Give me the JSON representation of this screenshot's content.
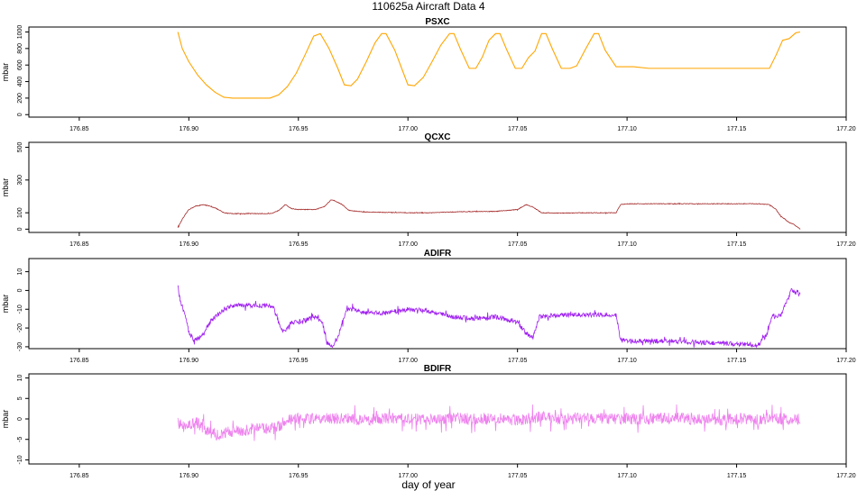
{
  "title": "110625a   Aircraft Data 4",
  "xlabel": "day of year",
  "chart_data": [
    {
      "type": "line",
      "title": "PSXC",
      "ylabel": "mbar",
      "color": "#FFA500",
      "xlim": [
        176.827,
        177.2
      ],
      "ylim": [
        -30,
        1060
      ],
      "xticks": [
        "176.85",
        "176.90",
        "176.95",
        "177.00",
        "177.05",
        "177.10",
        "177.15",
        "177.20"
      ],
      "yticks": [
        "0",
        "200",
        "400",
        "600",
        "800",
        "1000"
      ],
      "noise": 0,
      "x": [
        176.895,
        176.897,
        176.9,
        176.904,
        176.908,
        176.912,
        176.916,
        176.92,
        176.93,
        176.937,
        176.941,
        176.945,
        176.949,
        176.953,
        176.957,
        176.96,
        176.964,
        176.968,
        176.971,
        176.974,
        176.977,
        176.981,
        176.985,
        176.988,
        176.99,
        176.994,
        176.998,
        177.0,
        177.003,
        177.007,
        177.011,
        177.015,
        177.019,
        177.021,
        177.024,
        177.028,
        177.031,
        177.034,
        177.037,
        177.04,
        177.042,
        177.045,
        177.049,
        177.052,
        177.055,
        177.058,
        177.061,
        177.063,
        177.066,
        177.07,
        177.074,
        177.077,
        177.081,
        177.085,
        177.087,
        177.09,
        177.095,
        177.1,
        177.103,
        177.11,
        177.13,
        177.15,
        177.165,
        177.168,
        177.171,
        177.174,
        177.177,
        177.179
      ],
      "y": [
        1000,
        800,
        640,
        480,
        360,
        270,
        210,
        200,
        200,
        200,
        240,
        340,
        500,
        720,
        950,
        980,
        800,
        560,
        360,
        350,
        430,
        640,
        870,
        980,
        980,
        780,
        500,
        360,
        350,
        450,
        640,
        840,
        980,
        980,
        790,
        560,
        560,
        700,
        900,
        980,
        980,
        790,
        560,
        560,
        690,
        770,
        980,
        980,
        790,
        560,
        560,
        590,
        790,
        980,
        980,
        780,
        580,
        580,
        580,
        560,
        560,
        560,
        560,
        720,
        900,
        920,
        990,
        1000
      ]
    },
    {
      "type": "line",
      "title": "QCXC",
      "ylabel": "mbar",
      "color": "#A52A2A",
      "xlim": [
        176.827,
        177.2
      ],
      "ylim": [
        -20,
        530
      ],
      "xticks": [
        "176.85",
        "176.90",
        "176.95",
        "177.00",
        "177.05",
        "177.10",
        "177.15",
        "177.20"
      ],
      "yticks": [
        "0",
        "100",
        "300",
        "500"
      ],
      "noise": 2,
      "x": [
        176.895,
        176.897,
        176.9,
        176.903,
        176.907,
        176.912,
        176.916,
        176.92,
        176.93,
        176.938,
        176.941,
        176.944,
        176.947,
        176.95,
        176.958,
        176.962,
        176.965,
        176.967,
        176.97,
        176.973,
        176.976,
        176.98,
        177.0,
        177.01,
        177.02,
        177.03,
        177.04,
        177.05,
        177.054,
        177.057,
        177.061,
        177.07,
        177.08,
        177.09,
        177.095,
        177.097,
        177.1,
        177.12,
        177.14,
        177.16,
        177.165,
        177.168,
        177.17,
        177.172,
        177.174,
        177.176,
        177.178,
        177.179
      ],
      "y": [
        10,
        60,
        120,
        140,
        150,
        130,
        100,
        95,
        95,
        95,
        115,
        150,
        125,
        120,
        120,
        140,
        180,
        170,
        150,
        115,
        110,
        105,
        100,
        100,
        105,
        108,
        108,
        120,
        150,
        135,
        100,
        98,
        100,
        100,
        100,
        150,
        155,
        155,
        155,
        155,
        150,
        120,
        80,
        60,
        40,
        30,
        10,
        0
      ]
    },
    {
      "type": "line",
      "title": "ADIFR",
      "ylabel": "mbar",
      "color": "#A020F0",
      "xlim": [
        176.827,
        177.2
      ],
      "ylim": [
        -31,
        17
      ],
      "xticks": [
        "176.85",
        "176.90",
        "176.95",
        "176.95",
        "177.00",
        "177.05",
        "177.10",
        "177.15",
        "177.20"
      ],
      "yticks": [
        "-30",
        "-20",
        "-10",
        "0",
        "10"
      ],
      "noise": 1.2,
      "x": [
        176.895,
        176.896,
        176.898,
        176.9,
        176.902,
        176.905,
        176.908,
        176.912,
        176.916,
        176.92,
        176.93,
        176.938,
        176.94,
        176.942,
        176.944,
        176.947,
        176.95,
        176.955,
        176.958,
        176.961,
        176.963,
        176.966,
        176.968,
        176.97,
        176.972,
        176.975,
        176.98,
        176.99,
        177.0,
        177.01,
        177.02,
        177.03,
        177.04,
        177.05,
        177.054,
        177.057,
        177.06,
        177.07,
        177.08,
        177.09,
        177.095,
        177.097,
        177.1,
        177.12,
        177.14,
        177.16,
        177.162,
        177.164,
        177.166,
        177.17,
        177.173,
        177.175,
        177.177,
        177.179
      ],
      "y": [
        2,
        -5,
        -12,
        -22,
        -26,
        -25,
        -20,
        -14,
        -10,
        -8,
        -8,
        -8,
        -13,
        -21,
        -21,
        -17,
        -17,
        -15,
        -14,
        -17,
        -28,
        -30,
        -25,
        -18,
        -10,
        -10,
        -12,
        -12,
        -10,
        -11,
        -14,
        -15,
        -14,
        -17,
        -23,
        -25,
        -14,
        -13,
        -13,
        -13,
        -13,
        -26,
        -27,
        -27,
        -28,
        -29,
        -26,
        -23,
        -14,
        -13,
        -6,
        0,
        -1,
        -1
      ]
    },
    {
      "type": "line",
      "title": "BDIFR",
      "ylabel": "mbar",
      "color": "#EE82EE",
      "xlim": [
        176.827,
        177.2
      ],
      "ylim": [
        -11,
        11
      ],
      "xticks": [
        "176.85",
        "176.90",
        "176.95",
        "177.00",
        "177.05",
        "177.10",
        "177.15",
        "177.20"
      ],
      "yticks": [
        "-10",
        "-5",
        "0",
        "5",
        "10"
      ],
      "noise": 1.4,
      "x": [
        176.895,
        176.898,
        176.902,
        176.906,
        176.908,
        176.912,
        176.916,
        176.92,
        176.925,
        176.93,
        176.935,
        176.94,
        176.943,
        176.945,
        176.95,
        176.96,
        176.97,
        176.98,
        176.99,
        177.0,
        177.01,
        177.02,
        177.03,
        177.04,
        177.05,
        177.06,
        177.07,
        177.08,
        177.09,
        177.1,
        177.11,
        177.12,
        177.13,
        177.14,
        177.15,
        177.16,
        177.17,
        177.179
      ],
      "y": [
        -1,
        -2,
        -1,
        -1,
        -3,
        -4,
        -3.5,
        -3,
        -2.8,
        -2.5,
        -2.3,
        -2,
        -1,
        0,
        0,
        0,
        0.2,
        -0.3,
        0.2,
        0,
        -0.2,
        0.3,
        0,
        0.2,
        -0.3,
        0.5,
        0,
        0.3,
        0,
        0,
        0,
        0.2,
        0,
        -0.3,
        0,
        0,
        0,
        0
      ]
    }
  ]
}
